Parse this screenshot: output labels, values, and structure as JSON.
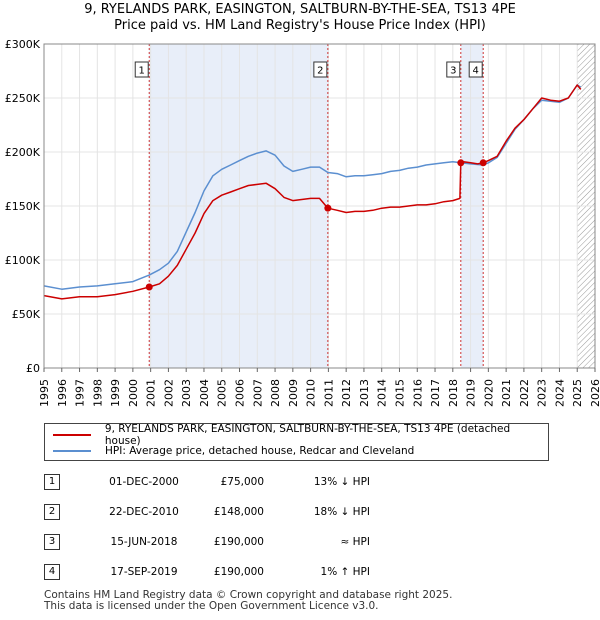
{
  "title_line1": "9, RYELANDS PARK, EASINGTON, SALTBURN-BY-THE-SEA, TS13 4PE",
  "title_line2": "Price paid vs. HM Land Registry's House Price Index (HPI)",
  "legend": {
    "property_label": "9, RYELANDS PARK, EASINGTON, SALTBURN-BY-THE-SEA, TS13 4PE (detached house)",
    "hpi_label": "HPI: Average price, detached house, Redcar and Cleveland"
  },
  "colors": {
    "property": "#cc0000",
    "hpi": "#5b8fd0",
    "shade": "#e8eef9",
    "marker_line": "#cc3333"
  },
  "sales": [
    {
      "num": "1",
      "date": "01-DEC-2000",
      "price": "£75,000",
      "hpi_rel": "13% ↓ HPI"
    },
    {
      "num": "2",
      "date": "22-DEC-2010",
      "price": "£148,000",
      "hpi_rel": "18% ↓ HPI"
    },
    {
      "num": "3",
      "date": "15-JUN-2018",
      "price": "£190,000",
      "hpi_rel": "≈ HPI"
    },
    {
      "num": "4",
      "date": "17-SEP-2019",
      "price": "£190,000",
      "hpi_rel": "1% ↑ HPI"
    }
  ],
  "footer_line1": "Contains HM Land Registry data © Crown copyright and database right 2025.",
  "footer_line2": "This data is licensed under the Open Government Licence v3.0.",
  "chart_data": {
    "type": "line",
    "title": "Price paid vs. HM Land Registry's House Price Index (HPI)",
    "xlabel": "",
    "ylabel": "",
    "xlim": [
      1995,
      2026
    ],
    "ylim": [
      0,
      300000
    ],
    "x_ticks": [
      1995,
      1996,
      1997,
      1998,
      1999,
      2000,
      2001,
      2002,
      2003,
      2004,
      2005,
      2006,
      2007,
      2008,
      2009,
      2010,
      2011,
      2012,
      2013,
      2014,
      2015,
      2016,
      2017,
      2018,
      2019,
      2020,
      2021,
      2022,
      2023,
      2024,
      2025,
      2026
    ],
    "y_ticks": [
      {
        "value": 0,
        "label": "£0"
      },
      {
        "value": 50000,
        "label": "£50K"
      },
      {
        "value": 100000,
        "label": "£100K"
      },
      {
        "value": 150000,
        "label": "£150K"
      },
      {
        "value": 200000,
        "label": "£200K"
      },
      {
        "value": 250000,
        "label": "£250K"
      },
      {
        "value": 300000,
        "label": "£300K"
      }
    ],
    "shaded_ranges": [
      [
        2000.92,
        2010.97
      ],
      [
        2018.45,
        2019.71
      ]
    ],
    "future_hatch_from": 2025.0,
    "sale_markers": [
      {
        "label": "1",
        "x": 2000.92,
        "y": 75000
      },
      {
        "label": "2",
        "x": 2010.97,
        "y": 148000
      },
      {
        "label": "3",
        "x": 2018.45,
        "y": 190000
      },
      {
        "label": "4",
        "x": 2019.71,
        "y": 190000
      }
    ],
    "series": [
      {
        "name": "9, RYELANDS PARK, EASINGTON, SALTBURN-BY-THE-SEA, TS13 4PE (detached house)",
        "x": [
          1995,
          1996,
          1997,
          1998,
          1999,
          2000,
          2000.92,
          2001.5,
          2002,
          2002.5,
          2003,
          2003.5,
          2004,
          2004.5,
          2005,
          2005.5,
          2006,
          2006.5,
          2007,
          2007.5,
          2008,
          2008.5,
          2009,
          2009.5,
          2010,
          2010.5,
          2010.97,
          2011.5,
          2012,
          2012.5,
          2013,
          2013.5,
          2014,
          2014.5,
          2015,
          2015.5,
          2016,
          2016.5,
          2017,
          2017.5,
          2018,
          2018.4,
          2018.45,
          2018.6,
          2019,
          2019.4,
          2019.71,
          2020,
          2020.5,
          2021,
          2021.5,
          2022,
          2022.5,
          2023,
          2023.5,
          2024,
          2024.5,
          2025,
          2025.2
        ],
        "values": [
          67000,
          64000,
          66000,
          66000,
          68000,
          71000,
          75000,
          78000,
          85000,
          95000,
          110000,
          125000,
          143000,
          155000,
          160000,
          163000,
          166000,
          169000,
          170000,
          171000,
          166000,
          158000,
          155000,
          156000,
          157000,
          157000,
          148000,
          146000,
          144000,
          145000,
          145000,
          146000,
          148000,
          149000,
          149000,
          150000,
          151000,
          151000,
          152000,
          154000,
          155000,
          157000,
          190000,
          191000,
          190000,
          189000,
          190000,
          192000,
          196000,
          210000,
          222000,
          230000,
          240000,
          250000,
          248000,
          247000,
          250000,
          262000,
          258000
        ]
      },
      {
        "name": "HPI: Average price, detached house, Redcar and Cleveland",
        "x": [
          1995,
          1996,
          1997,
          1998,
          1999,
          2000,
          2000.92,
          2001.5,
          2002,
          2002.5,
          2003,
          2003.5,
          2004,
          2004.5,
          2005,
          2005.5,
          2006,
          2006.5,
          2007,
          2007.5,
          2008,
          2008.5,
          2009,
          2009.5,
          2010,
          2010.5,
          2010.97,
          2011.5,
          2012,
          2012.5,
          2013,
          2013.5,
          2014,
          2014.5,
          2015,
          2015.5,
          2016,
          2016.5,
          2017,
          2017.5,
          2018,
          2018.45,
          2019,
          2019.71,
          2020,
          2020.5,
          2021,
          2021.5,
          2022,
          2022.5,
          2023,
          2023.5,
          2024,
          2024.5,
          2025,
          2025.2
        ],
        "values": [
          76000,
          73000,
          75000,
          76000,
          78000,
          80000,
          86000,
          91000,
          97000,
          108000,
          126000,
          144000,
          164000,
          178000,
          184000,
          188000,
          192000,
          196000,
          199000,
          201000,
          197000,
          187000,
          182000,
          184000,
          186000,
          186000,
          181000,
          180000,
          177000,
          178000,
          178000,
          179000,
          180000,
          182000,
          183000,
          185000,
          186000,
          188000,
          189000,
          190000,
          191000,
          190000,
          189000,
          188000,
          190000,
          195000,
          208000,
          221000,
          230000,
          240000,
          248000,
          247000,
          246000,
          250000,
          262000,
          260000
        ]
      }
    ]
  }
}
